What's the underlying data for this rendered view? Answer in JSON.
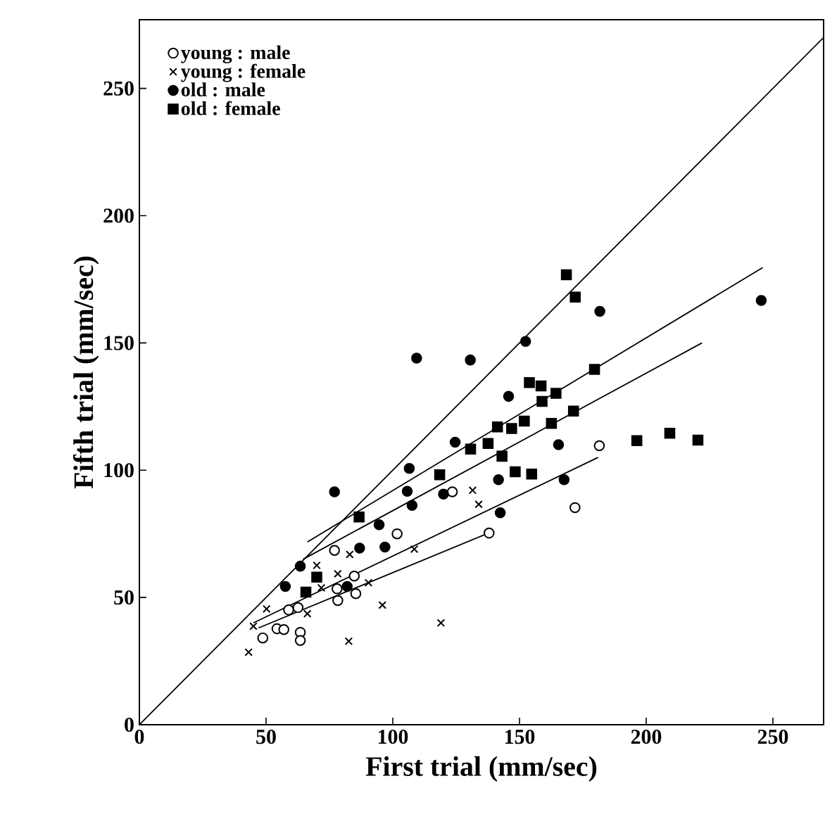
{
  "chart_data": {
    "type": "scatter",
    "xlabel": "First trial (mm/sec)",
    "ylabel": "Fifth trial (mm/sec)",
    "xlim": [
      0,
      270
    ],
    "ylim": [
      0,
      277
    ],
    "xticks": [
      0,
      50,
      100,
      150,
      200,
      250
    ],
    "yticks": [
      0,
      50,
      100,
      150,
      200,
      250
    ],
    "grid": false,
    "legend": "top left",
    "series": [
      {
        "name": "young : male",
        "color": "#ffffff",
        "marker": "circle",
        "x": [
          181.5,
          171.9,
          138,
          123.5,
          101.7,
          77,
          84.8,
          78,
          85.4,
          78.3,
          58.9,
          54.3,
          57,
          48.7,
          63.5,
          63.5,
          62.6
        ],
        "values": [
          109.6,
          85.3,
          75.3,
          91.5,
          75,
          68.5,
          58.4,
          53.4,
          51.5,
          48.8,
          45.1,
          37.7,
          37.4,
          34.1,
          36.3,
          33.1,
          46
        ]
      },
      {
        "name": "young : female",
        "color": "#000000",
        "marker": "cross",
        "x": [
          43.1,
          45,
          50.2,
          66.3,
          70,
          78.3,
          83,
          71.8,
          90.4,
          95.9,
          82.6,
          119,
          108.5,
          131.5,
          133.9
        ],
        "values": [
          28.5,
          38.7,
          45.5,
          43.6,
          62.6,
          59.3,
          66.9,
          53.8,
          55.8,
          47,
          32.8,
          40,
          69,
          92.1,
          86.6
        ]
      },
      {
        "name": "old : male",
        "color": "#000000",
        "marker": "circle",
        "x": [
          109.4,
          130.6,
          152.4,
          181.7,
          245.4,
          145.7,
          124.6,
          165.4,
          106.5,
          105.7,
          120,
          107.6,
          141.7,
          167.6,
          142.4,
          94.6,
          86.9,
          96.9,
          77,
          63.5,
          57.6,
          82
        ],
        "values": [
          144,
          143.3,
          150.6,
          162.4,
          166.7,
          129,
          111,
          110,
          100.7,
          91.7,
          90.6,
          86.2,
          96.3,
          96.3,
          83.3,
          78.6,
          69.4,
          69.8,
          91.5,
          62.3,
          54.3,
          54.3
        ]
      },
      {
        "name": "old : female",
        "color": "#000000",
        "marker": "square",
        "x": [
          168.5,
          172,
          179.6,
          153.9,
          158.5,
          164.4,
          158.9,
          151.9,
          146.9,
          141.3,
          171.3,
          162.6,
          137.6,
          130.7,
          143.1,
          118.5,
          148.3,
          154.8,
          196.3,
          209.3,
          220.4,
          86.7,
          70,
          65.7
        ],
        "values": [
          176.8,
          168,
          139.6,
          134.4,
          133.1,
          130.2,
          127,
          119.3,
          116.4,
          117,
          123.2,
          118.4,
          110.5,
          108.3,
          105.5,
          98.2,
          99.4,
          98.5,
          111.6,
          114.5,
          111.8,
          81.6,
          58,
          52.1
        ]
      },
      {
        "type": "line",
        "color": "#000000",
        "x": [
          0,
          270
        ],
        "values": [
          0,
          270
        ]
      },
      {
        "type": "line",
        "color": "#000000",
        "x": [
          66.3,
          246
        ],
        "values": [
          71.8,
          179.6
        ]
      },
      {
        "type": "line",
        "color": "#000000",
        "x": [
          64.6,
          222
        ],
        "values": [
          65,
          150
        ]
      },
      {
        "type": "line",
        "color": "#000000",
        "x": [
          45,
          181
        ],
        "values": [
          40,
          105
        ]
      },
      {
        "type": "line",
        "color": "#000000",
        "x": [
          47,
          139.5
        ],
        "values": [
          38,
          76
        ]
      }
    ]
  }
}
